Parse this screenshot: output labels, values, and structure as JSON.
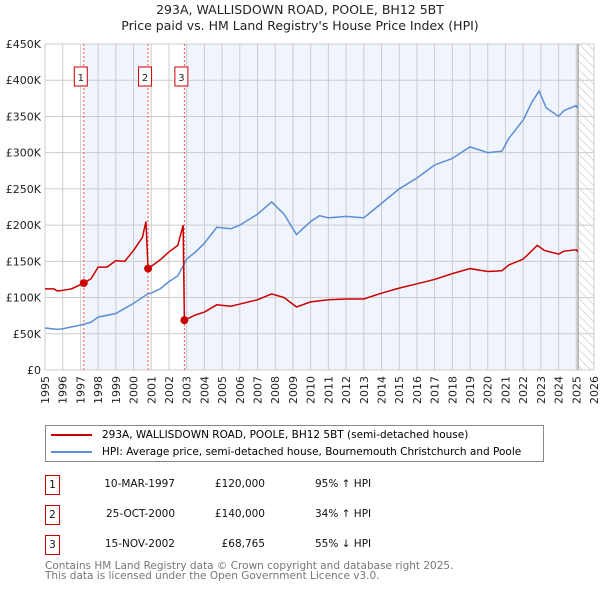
{
  "chart_data": {
    "type": "line",
    "title": "293A, WALLISDOWN ROAD, POOLE, BH12 5BT",
    "subtitle": "Price paid vs. HM Land Registry's House Price Index (HPI)",
    "xlim": [
      1995,
      2026
    ],
    "ylim": [
      0,
      450000
    ],
    "x_ticks": [
      "1995",
      "1996",
      "1997",
      "1998",
      "1999",
      "2000",
      "2001",
      "2002",
      "2003",
      "2004",
      "2005",
      "2006",
      "2007",
      "2008",
      "2009",
      "2010",
      "2011",
      "2012",
      "2013",
      "2014",
      "2015",
      "2016",
      "2017",
      "2018",
      "2019",
      "2020",
      "2021",
      "2022",
      "2023",
      "2024",
      "2025",
      "2026"
    ],
    "y_ticks": [
      {
        "v": 0,
        "label": "£0"
      },
      {
        "v": 50000,
        "label": "£50K"
      },
      {
        "v": 100000,
        "label": "£100K"
      },
      {
        "v": 150000,
        "label": "£150K"
      },
      {
        "v": 200000,
        "label": "£200K"
      },
      {
        "v": 250000,
        "label": "£250K"
      },
      {
        "v": 300000,
        "label": "£300K"
      },
      {
        "v": 350000,
        "label": "£350K"
      },
      {
        "v": 400000,
        "label": "£400K"
      },
      {
        "v": 450000,
        "label": "£450K"
      }
    ],
    "grid": true,
    "data_end": 2025.1,
    "series": [
      {
        "name": "293A, WALLISDOWN ROAD, POOLE, BH12 5BT (semi-detached house)",
        "color": "#cc0000",
        "x": [
          1995,
          1995.5,
          1995.7,
          1996,
          1996.5,
          1997.19,
          1997.6,
          1998,
          1998.5,
          1999,
          1999.5,
          2000,
          2000.5,
          2000.7,
          2000.82,
          2001,
          2001.5,
          2002,
          2002.5,
          2002.8,
          2002.87,
          2003.5,
          2004,
          2004.7,
          2005.5,
          2006,
          2007,
          2007.8,
          2008.5,
          2009.2,
          2010,
          2011,
          2012,
          2013,
          2014,
          2015,
          2016,
          2017,
          2018,
          2019,
          2020,
          2020.8,
          2021.2,
          2022,
          2022.8,
          2023.2,
          2024,
          2024.3,
          2025,
          2025.1
        ],
        "y": [
          112000,
          112000,
          109000,
          110000,
          112000,
          120000,
          126000,
          142000,
          142000,
          151000,
          150000,
          165000,
          183000,
          205000,
          140000,
          143000,
          152000,
          163000,
          172000,
          200000,
          68765,
          76000,
          80000,
          90000,
          88000,
          91000,
          97000,
          105000,
          100000,
          87000,
          94000,
          97000,
          98000,
          98000,
          106000,
          113000,
          119000,
          125000,
          133000,
          140000,
          136000,
          137000,
          145000,
          153000,
          172000,
          165000,
          160000,
          164000,
          166000,
          163000
        ]
      },
      {
        "name": "HPI: Average price, semi-detached house, Bournemouth Christchurch and Poole",
        "color": "#5b8ed6",
        "x": [
          1995,
          1995.7,
          1996,
          1997,
          1997.6,
          1998,
          1999,
          2000,
          2000.8,
          2001,
          2001.5,
          2002,
          2002.5,
          2003,
          2003.5,
          2004,
          2004.7,
          2005.5,
          2006,
          2007,
          2007.8,
          2008.5,
          2009.2,
          2010,
          2010.5,
          2011,
          2012,
          2013,
          2014,
          2015,
          2016,
          2017,
          2018,
          2019,
          2020,
          2020.8,
          2021.2,
          2022,
          2022.5,
          2022.9,
          2023.3,
          2024,
          2024.3,
          2025,
          2025.1
        ],
        "y": [
          58000,
          56000,
          57000,
          62000,
          66000,
          73000,
          78000,
          92000,
          105000,
          106000,
          112000,
          122000,
          130000,
          153000,
          163000,
          175000,
          197000,
          195000,
          200000,
          215000,
          232000,
          215000,
          187000,
          205000,
          213000,
          210000,
          212000,
          210000,
          230000,
          250000,
          265000,
          283000,
          292000,
          308000,
          300000,
          302000,
          320000,
          345000,
          370000,
          385000,
          362000,
          350000,
          358000,
          365000,
          361000
        ]
      }
    ],
    "sales": [
      {
        "id": "1",
        "x": 1997.19,
        "y": 120000
      },
      {
        "id": "2",
        "x": 2000.82,
        "y": 140000
      },
      {
        "id": "3",
        "x": 2002.87,
        "y": 68765
      }
    ],
    "legend": "bottom"
  },
  "table": [
    {
      "id": "1",
      "date": "10-MAR-1997",
      "price": "£120,000",
      "hpi": "95% ↑ HPI"
    },
    {
      "id": "2",
      "date": "25-OCT-2000",
      "price": "£140,000",
      "hpi": "34% ↑ HPI"
    },
    {
      "id": "3",
      "date": "15-NOV-2002",
      "price": "£68,765",
      "hpi": "55% ↓ HPI"
    }
  ],
  "footer": [
    "Contains HM Land Registry data © Crown copyright and database right 2025.",
    "This data is licensed under the Open Government Licence v3.0."
  ]
}
